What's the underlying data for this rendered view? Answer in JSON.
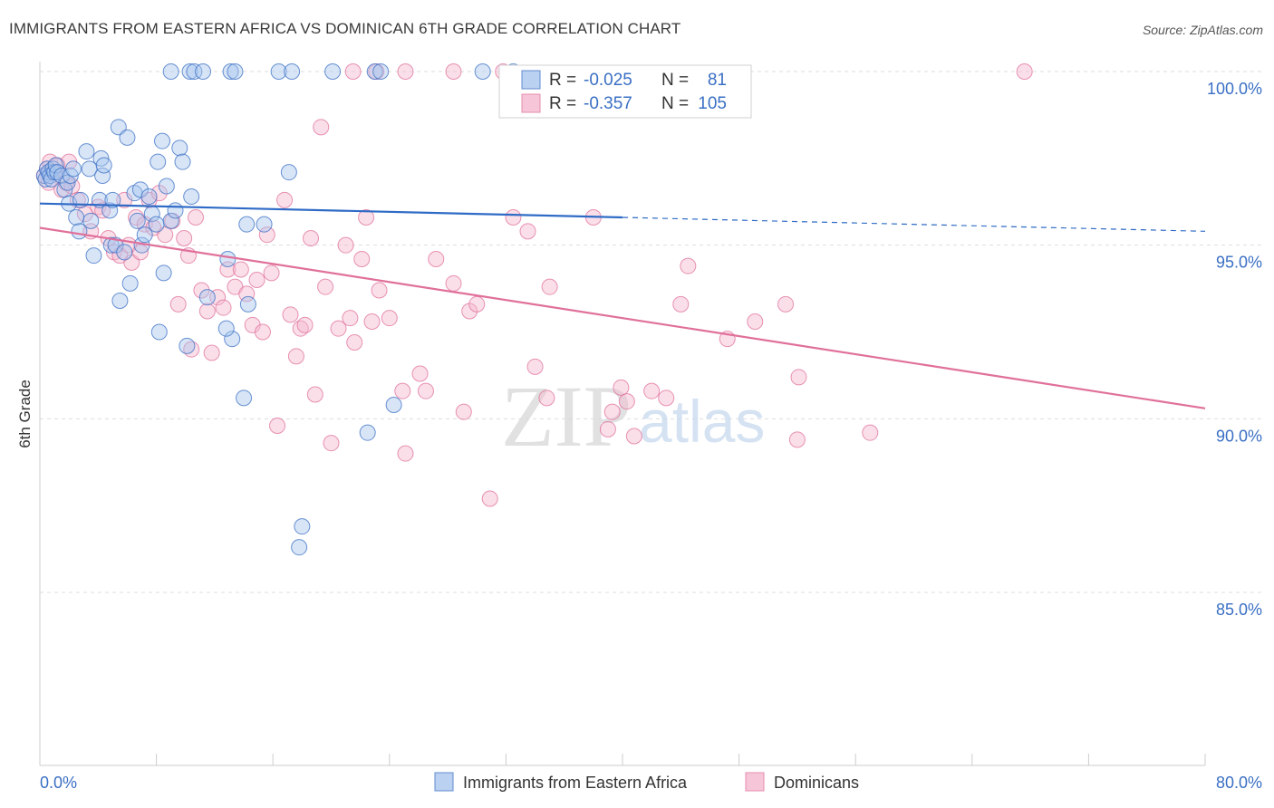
{
  "header": {
    "title": "IMMIGRANTS FROM EASTERN AFRICA VS DOMINICAN 6TH GRADE CORRELATION CHART",
    "source": "Source: ZipAtlas.com"
  },
  "watermark": {
    "zip": "ZIP",
    "atlas": "atlas"
  },
  "colors": {
    "blue": "#3a6fc4",
    "blue_fill": "#a9c6ee",
    "blue_line": "#2f6bc6",
    "pink": "#e0709a",
    "pink_fill": "#f5b9cf",
    "pink_line": "#e0709a",
    "grid": "#dddddd"
  },
  "legend": {
    "r_label": "R =",
    "n_label": "N =",
    "rows": [
      {
        "r": "-0.025",
        "n": "81"
      },
      {
        "r": "-0.357",
        "n": "105"
      }
    ]
  },
  "chart_data": {
    "type": "scatter",
    "title": "IMMIGRANTS FROM EASTERN AFRICA VS DOMINICAN 6TH GRADE CORRELATION CHART",
    "xlabel": "",
    "ylabel": "6th Grade",
    "xlim": [
      0,
      80
    ],
    "ylim": [
      80.5,
      100.5
    ],
    "x_ticks": [
      "0.0%",
      "80.0%"
    ],
    "y_ticks": [
      {
        "value": 100,
        "label": "100.0%"
      },
      {
        "value": 95,
        "label": "95.0%"
      },
      {
        "value": 90,
        "label": "90.0%"
      },
      {
        "value": 85,
        "label": "85.0%"
      }
    ],
    "grid": true,
    "legend_position": "bottom",
    "series": [
      {
        "name": "Immigrants from Eastern Africa",
        "color": "#3a6fc4",
        "trend": {
          "x": [
            0,
            40
          ],
          "y": [
            96.2,
            95.8
          ],
          "dashed_to": [
            80,
            95.4
          ]
        },
        "points": [
          [
            0.3,
            97.0
          ],
          [
            0.4,
            96.9
          ],
          [
            0.5,
            97.2
          ],
          [
            0.6,
            97.1
          ],
          [
            0.7,
            97.0
          ],
          [
            0.8,
            96.9
          ],
          [
            0.9,
            97.2
          ],
          [
            1.0,
            97.1
          ],
          [
            1.1,
            97.3
          ],
          [
            1.2,
            97.1
          ],
          [
            1.5,
            97.0
          ],
          [
            1.7,
            96.6
          ],
          [
            1.9,
            96.8
          ],
          [
            2.0,
            96.2
          ],
          [
            2.1,
            97.0
          ],
          [
            2.3,
            97.2
          ],
          [
            2.5,
            95.8
          ],
          [
            2.7,
            95.4
          ],
          [
            2.8,
            96.3
          ],
          [
            3.2,
            97.7
          ],
          [
            3.4,
            97.2
          ],
          [
            3.5,
            95.7
          ],
          [
            3.7,
            94.7
          ],
          [
            4.1,
            96.3
          ],
          [
            4.2,
            97.5
          ],
          [
            4.3,
            97.0
          ],
          [
            4.4,
            97.3
          ],
          [
            4.8,
            96.0
          ],
          [
            4.9,
            95.0
          ],
          [
            5.0,
            96.3
          ],
          [
            5.2,
            95.0
          ],
          [
            5.4,
            98.4
          ],
          [
            5.5,
            93.4
          ],
          [
            5.8,
            94.8
          ],
          [
            6.0,
            98.1
          ],
          [
            6.2,
            93.9
          ],
          [
            6.5,
            96.5
          ],
          [
            6.7,
            95.7
          ],
          [
            6.9,
            96.6
          ],
          [
            7.0,
            95.0
          ],
          [
            7.2,
            95.3
          ],
          [
            7.5,
            96.4
          ],
          [
            7.7,
            95.9
          ],
          [
            8.0,
            95.6
          ],
          [
            8.1,
            97.4
          ],
          [
            8.2,
            92.5
          ],
          [
            8.4,
            98.0
          ],
          [
            8.5,
            94.2
          ],
          [
            8.7,
            96.7
          ],
          [
            9.0,
            95.7
          ],
          [
            9.3,
            96.0
          ],
          [
            9.6,
            97.8
          ],
          [
            9.8,
            97.4
          ],
          [
            10.1,
            92.1
          ],
          [
            10.4,
            96.4
          ],
          [
            11.5,
            93.5
          ],
          [
            12.9,
            94.6
          ],
          [
            13.2,
            92.3
          ],
          [
            14.0,
            90.6
          ],
          [
            14.2,
            95.6
          ],
          [
            14.3,
            93.3
          ],
          [
            15.4,
            95.6
          ],
          [
            17.1,
            97.1
          ],
          [
            18.0,
            86.9
          ],
          [
            17.8,
            86.3
          ],
          [
            22.5,
            89.6
          ],
          [
            24.3,
            90.4
          ],
          [
            9.0,
            100.0
          ],
          [
            10.3,
            100.0
          ],
          [
            10.6,
            100.0
          ],
          [
            11.2,
            100.0
          ],
          [
            13.1,
            100.0
          ],
          [
            13.4,
            100.0
          ],
          [
            16.4,
            100.0
          ],
          [
            17.3,
            100.0
          ],
          [
            20.1,
            100.0
          ],
          [
            23.0,
            100.0
          ],
          [
            23.4,
            100.0
          ],
          [
            30.4,
            100.0
          ],
          [
            32.5,
            100.0
          ],
          [
            12.8,
            92.6
          ]
        ]
      },
      {
        "name": "Dominicans",
        "color": "#e0709a",
        "trend": {
          "x": [
            0,
            80
          ],
          "y": [
            95.5,
            90.3
          ]
        },
        "points": [
          [
            0.3,
            97.0
          ],
          [
            0.5,
            97.2
          ],
          [
            0.6,
            96.8
          ],
          [
            0.7,
            97.4
          ],
          [
            0.9,
            97.1
          ],
          [
            1.2,
            97.3
          ],
          [
            1.5,
            96.6
          ],
          [
            1.8,
            96.8
          ],
          [
            2.0,
            97.4
          ],
          [
            2.2,
            96.7
          ],
          [
            2.6,
            96.3
          ],
          [
            3.1,
            95.9
          ],
          [
            3.5,
            95.4
          ],
          [
            4.0,
            96.1
          ],
          [
            4.3,
            96.0
          ],
          [
            4.7,
            95.2
          ],
          [
            5.1,
            94.8
          ],
          [
            5.5,
            94.7
          ],
          [
            5.8,
            96.3
          ],
          [
            6.1,
            95.0
          ],
          [
            6.3,
            94.5
          ],
          [
            6.6,
            95.8
          ],
          [
            6.9,
            94.8
          ],
          [
            7.2,
            95.6
          ],
          [
            7.5,
            96.3
          ],
          [
            7.8,
            95.5
          ],
          [
            8.2,
            96.5
          ],
          [
            8.6,
            95.3
          ],
          [
            9.1,
            95.7
          ],
          [
            9.5,
            93.3
          ],
          [
            9.9,
            95.2
          ],
          [
            10.2,
            94.7
          ],
          [
            10.4,
            92.0
          ],
          [
            10.7,
            95.8
          ],
          [
            11.1,
            93.7
          ],
          [
            11.5,
            93.1
          ],
          [
            11.8,
            91.9
          ],
          [
            12.2,
            93.5
          ],
          [
            12.6,
            93.2
          ],
          [
            12.9,
            94.3
          ],
          [
            13.4,
            93.8
          ],
          [
            13.8,
            94.3
          ],
          [
            14.2,
            93.6
          ],
          [
            14.6,
            92.7
          ],
          [
            14.9,
            94.0
          ],
          [
            15.3,
            92.5
          ],
          [
            15.6,
            95.3
          ],
          [
            15.9,
            94.2
          ],
          [
            16.3,
            89.8
          ],
          [
            16.8,
            96.3
          ],
          [
            17.2,
            93.0
          ],
          [
            17.6,
            91.8
          ],
          [
            17.9,
            92.6
          ],
          [
            18.2,
            92.7
          ],
          [
            18.6,
            95.2
          ],
          [
            18.9,
            90.7
          ],
          [
            19.3,
            98.4
          ],
          [
            19.6,
            93.8
          ],
          [
            20.0,
            89.3
          ],
          [
            20.5,
            92.6
          ],
          [
            21.0,
            95.0
          ],
          [
            21.3,
            92.9
          ],
          [
            21.6,
            92.2
          ],
          [
            22.1,
            94.6
          ],
          [
            22.4,
            95.8
          ],
          [
            22.8,
            92.8
          ],
          [
            23.3,
            93.7
          ],
          [
            24.0,
            92.9
          ],
          [
            24.9,
            90.8
          ],
          [
            25.1,
            89.0
          ],
          [
            26.1,
            91.3
          ],
          [
            26.5,
            90.8
          ],
          [
            27.2,
            94.6
          ],
          [
            28.4,
            93.9
          ],
          [
            29.1,
            90.2
          ],
          [
            29.5,
            93.1
          ],
          [
            30.0,
            93.3
          ],
          [
            30.9,
            87.7
          ],
          [
            32.5,
            95.8
          ],
          [
            33.5,
            95.4
          ],
          [
            34.0,
            91.5
          ],
          [
            34.8,
            90.6
          ],
          [
            35.0,
            93.8
          ],
          [
            38.0,
            95.8
          ],
          [
            39.0,
            89.7
          ],
          [
            39.3,
            90.2
          ],
          [
            39.9,
            90.9
          ],
          [
            40.3,
            90.5
          ],
          [
            40.8,
            89.5
          ],
          [
            42.0,
            90.8
          ],
          [
            43.0,
            90.6
          ],
          [
            44.0,
            93.3
          ],
          [
            44.5,
            94.4
          ],
          [
            47.2,
            92.3
          ],
          [
            49.1,
            92.8
          ],
          [
            51.2,
            93.3
          ],
          [
            52.1,
            91.2
          ],
          [
            52.0,
            89.4
          ],
          [
            57.0,
            89.6
          ],
          [
            21.5,
            100.0
          ],
          [
            23.1,
            100.0
          ],
          [
            25.1,
            100.0
          ],
          [
            28.4,
            100.0
          ],
          [
            31.8,
            100.0
          ],
          [
            67.6,
            100.0
          ]
        ]
      }
    ]
  }
}
